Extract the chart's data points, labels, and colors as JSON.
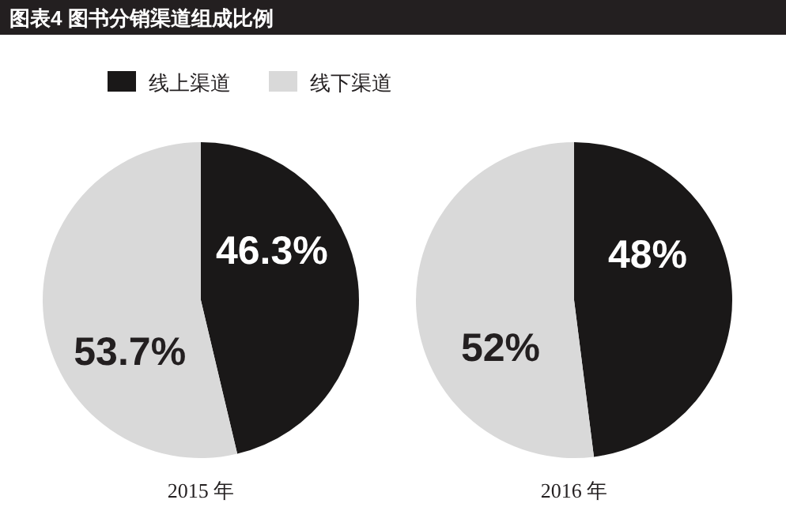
{
  "chart_data": {
    "type": "pie",
    "title": "图表4  图书分销渠道组成比例",
    "categories": [
      "线上渠道",
      "线下渠道"
    ],
    "colors": [
      "#1a1818",
      "#d9d9d9"
    ],
    "legend": "top",
    "series": [
      {
        "name": "2015 年",
        "values": [
          46.3,
          53.7
        ],
        "value_labels": [
          "46.3%",
          "53.7%"
        ]
      },
      {
        "name": "2016 年",
        "values": [
          48,
          52
        ],
        "value_labels": [
          "48%",
          "52%"
        ]
      }
    ]
  }
}
